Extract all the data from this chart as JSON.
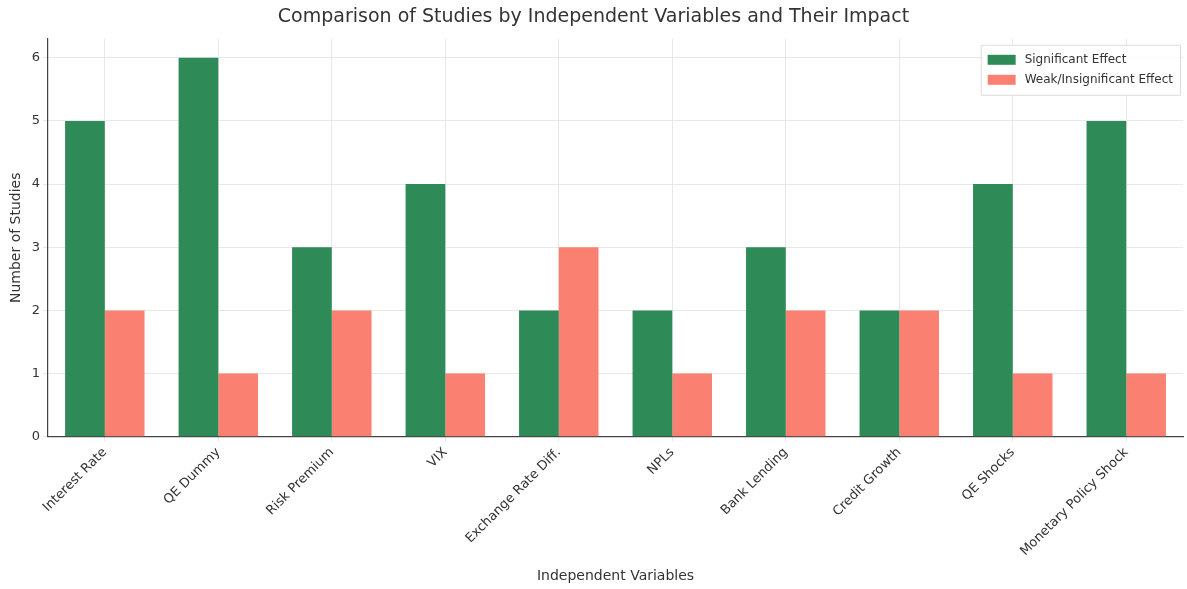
{
  "chart_data": {
    "type": "bar",
    "title": "Comparison of Studies by Independent Variables and Their Impact",
    "xlabel": "Independent Variables",
    "ylabel": "Number of Studies",
    "categories": [
      "Interest Rate",
      "QE Dummy",
      "Risk Premium",
      "VIX",
      "Exchange Rate Diff.",
      "NPLs",
      "Bank Lending",
      "Credit Growth",
      "QE Shocks",
      "Monetary Policy Shock"
    ],
    "series": [
      {
        "name": "Significant Effect",
        "color": "#2e8b57",
        "values": [
          5,
          6,
          3,
          4,
          2,
          2,
          3,
          2,
          4,
          5
        ]
      },
      {
        "name": "Weak/Insignificant Effect",
        "color": "#fa8072",
        "values": [
          2,
          1,
          2,
          1,
          3,
          1,
          2,
          2,
          1,
          1
        ]
      }
    ],
    "ylim": [
      0,
      6.3
    ],
    "yticks": [
      0,
      1,
      2,
      3,
      4,
      5,
      6
    ],
    "grid": true,
    "legend": "top right"
  }
}
